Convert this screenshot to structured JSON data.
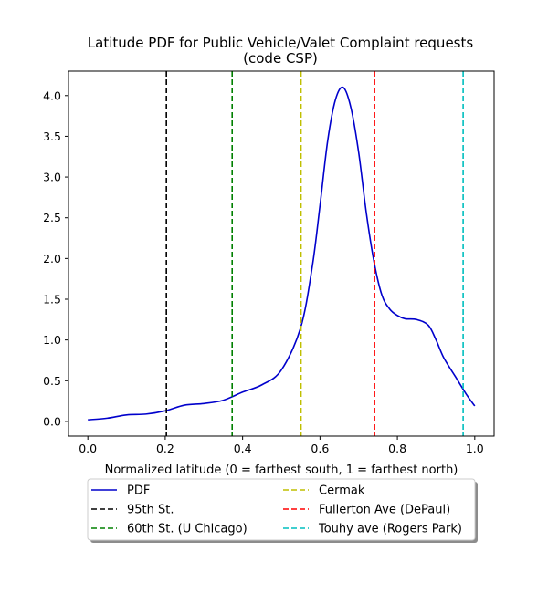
{
  "chart_data": {
    "type": "line",
    "title": [
      "Latitude PDF for Public Vehicle/Valet Complaint  requests",
      "(code CSP)"
    ],
    "xlabel": "Normalized latitude (0 = farthest south, 1 = farthest north)",
    "ylabel": "",
    "xlim": [
      -0.05,
      1.05
    ],
    "ylim": [
      -0.18,
      4.3
    ],
    "xticks": [
      0.0,
      0.2,
      0.4,
      0.6,
      0.8,
      1.0
    ],
    "xtick_labels": [
      "0.0",
      "0.2",
      "0.4",
      "0.6",
      "0.8",
      "1.0"
    ],
    "yticks": [
      0.0,
      0.5,
      1.0,
      1.5,
      2.0,
      2.5,
      3.0,
      3.5,
      4.0
    ],
    "ytick_labels": [
      "0.0",
      "0.5",
      "1.0",
      "1.5",
      "2.0",
      "2.5",
      "3.0",
      "3.5",
      "4.0"
    ],
    "grid": false,
    "legend_position": "below",
    "series": [
      {
        "name": "PDF",
        "color": "#0000cc",
        "style": "solid",
        "x": [
          0.0,
          0.05,
          0.1,
          0.15,
          0.2,
          0.25,
          0.3,
          0.35,
          0.4,
          0.45,
          0.5,
          0.55,
          0.58,
          0.6,
          0.62,
          0.64,
          0.66,
          0.68,
          0.7,
          0.72,
          0.74,
          0.76,
          0.78,
          0.8,
          0.82,
          0.85,
          0.88,
          0.9,
          0.92,
          0.95,
          0.98,
          1.0
        ],
        "y": [
          0.02,
          0.04,
          0.08,
          0.09,
          0.13,
          0.2,
          0.22,
          0.26,
          0.36,
          0.45,
          0.63,
          1.15,
          1.9,
          2.65,
          3.45,
          3.95,
          4.1,
          3.85,
          3.3,
          2.55,
          1.95,
          1.55,
          1.38,
          1.3,
          1.26,
          1.25,
          1.18,
          1.0,
          0.78,
          0.55,
          0.32,
          0.19
        ]
      }
    ],
    "vlines": [
      {
        "name": "95th St.",
        "x": 0.203,
        "color": "#000000"
      },
      {
        "name": "60th St. (U Chicago)",
        "x": 0.373,
        "color": "#008000"
      },
      {
        "name": "Cermak",
        "x": 0.551,
        "color": "#bfbf00"
      },
      {
        "name": "Fullerton Ave (DePaul)",
        "x": 0.741,
        "color": "#ff0000"
      },
      {
        "name": "Touhy ave (Rogers Park)",
        "x": 0.97,
        "color": "#00bfbf"
      }
    ]
  }
}
